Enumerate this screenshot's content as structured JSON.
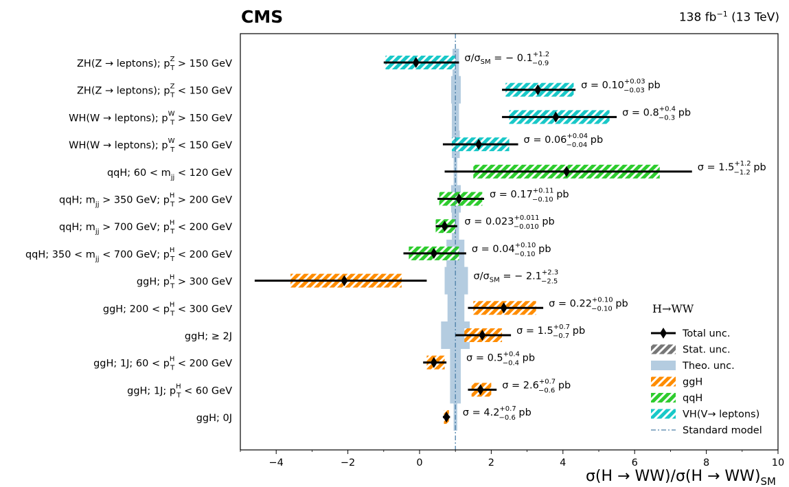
{
  "header": {
    "experiment": "CMS",
    "lumi_value": "138 fb",
    "lumi_exp": "−1",
    "lumi_energy": " (13 TeV)"
  },
  "chart_data": {
    "type": "scatter",
    "xlabel": "σ(H → WW)/σ(H → WW)",
    "xlabel_sub": "SM",
    "xlim": [
      -5,
      10
    ],
    "xticks": [
      -4,
      -2,
      0,
      2,
      4,
      6,
      8,
      10
    ],
    "sm_value": 1.0,
    "colors": {
      "ggH": "#ff8c00",
      "qqH": "#2ecc2e",
      "VH": "#19c8c8",
      "theo": "#b4cce0",
      "total": "#000000",
      "sm_line": "#4a7fa8"
    },
    "categories": [
      {
        "pre": "ZH(Z → leptons);  p",
        "sup": "Z",
        "sub": "T",
        "post": " > 150 GeV",
        "process": "VH",
        "central": -0.1,
        "tot": [
          -1.0,
          1.1
        ],
        "stat": [
          -0.95,
          1.0
        ],
        "theo": [
          0.92,
          1.1
        ],
        "res_pre": "σ/σ",
        "res_sub": "SM",
        "res_mid": " = − 0.1",
        "res_up": "+1.2",
        "res_dn": "−0.9",
        "res_post": ""
      },
      {
        "pre": "ZH(Z → leptons);  p",
        "sup": "Z",
        "sub": "T",
        "post": " < 150 GeV",
        "process": "VH",
        "central": 3.3,
        "tot": [
          2.3,
          4.35
        ],
        "stat": [
          2.4,
          4.3
        ],
        "theo": [
          0.88,
          1.15
        ],
        "res_pre": "σ = 0.10",
        "res_sub": "",
        "res_mid": "",
        "res_up": "+0.03",
        "res_dn": "−0.03",
        "res_post": " pb"
      },
      {
        "pre": "WH(W → leptons);  p",
        "sup": "W",
        "sub": "T",
        "post": " > 150 GeV",
        "process": "VH",
        "central": 3.8,
        "tot": [
          2.3,
          5.5
        ],
        "stat": [
          2.5,
          5.3
        ],
        "theo": [
          0.9,
          1.1
        ],
        "res_pre": "σ = 0.8",
        "res_sub": "",
        "res_mid": "",
        "res_up": "+0.4",
        "res_dn": "−0.3",
        "res_post": " pb"
      },
      {
        "pre": "WH(W → leptons);  p",
        "sup": "W",
        "sub": "T",
        "post": " < 150 GeV",
        "process": "VH",
        "central": 1.65,
        "tot": [
          0.65,
          2.75
        ],
        "stat": [
          0.9,
          2.5
        ],
        "theo": [
          0.9,
          1.12
        ],
        "res_pre": "σ = 0.06",
        "res_sub": "",
        "res_mid": "",
        "res_up": "+0.04",
        "res_dn": "−0.04",
        "res_post": " pb"
      },
      {
        "pre": "qqH;  60 < m",
        "sup": "",
        "sub": "jj",
        "post": " < 120 GeV",
        "process": "qqH",
        "central": 4.1,
        "tot": [
          0.7,
          7.6
        ],
        "stat": [
          1.5,
          6.7
        ],
        "theo": [
          0.95,
          1.05
        ],
        "res_pre": "σ = 1.5",
        "res_sub": "",
        "res_mid": "",
        "res_up": "+1.2",
        "res_dn": "−1.2",
        "res_post": " pb"
      },
      {
        "pre": "qqH;  m",
        "sup": "",
        "sub": "jj",
        "post": " > 350 GeV;  p",
        "sup2": "H",
        "sub2": "T",
        "post2": " > 200 GeV",
        "process": "qqH",
        "central": 1.1,
        "tot": [
          0.5,
          1.8
        ],
        "stat": [
          0.55,
          1.75
        ],
        "theo": [
          0.88,
          1.15
        ],
        "res_pre": "σ = 0.17",
        "res_sub": "",
        "res_mid": "",
        "res_up": "+0.11",
        "res_dn": "−0.10",
        "res_post": " pb"
      },
      {
        "pre": "qqH;  m",
        "sup": "",
        "sub": "jj",
        "post": " > 700 GeV;  p",
        "sup2": "H",
        "sub2": "T",
        "post2": " < 200 GeV",
        "process": "qqH",
        "central": 0.7,
        "tot": [
          0.45,
          1.05
        ],
        "stat": [
          0.45,
          1.0
        ],
        "theo": [
          0.9,
          1.1
        ],
        "res_pre": "σ = 0.023",
        "res_sub": "",
        "res_mid": "",
        "res_up": "+0.011",
        "res_dn": "−0.010",
        "res_post": " pb"
      },
      {
        "pre": "qqH;  350 < m",
        "sup": "",
        "sub": "jj",
        "post": " < 700 GeV;  p",
        "sup2": "H",
        "sub2": "T",
        "post2": " < 200 GeV",
        "process": "qqH",
        "central": 0.4,
        "tot": [
          -0.45,
          1.3
        ],
        "stat": [
          -0.3,
          1.1
        ],
        "theo": [
          0.75,
          1.25
        ],
        "res_pre": "σ = 0.04",
        "res_sub": "",
        "res_mid": "",
        "res_up": "+0.10",
        "res_dn": "−0.10",
        "res_post": " pb"
      },
      {
        "pre": "ggH;  p",
        "sup": "H",
        "sub": "T",
        "post": " > 300 GeV",
        "process": "ggH",
        "central": -2.1,
        "tot": [
          -4.6,
          0.2
        ],
        "stat": [
          -3.6,
          -0.5
        ],
        "theo": [
          0.7,
          1.35
        ],
        "res_pre": "σ/σ",
        "res_sub": "SM",
        "res_mid": " = − 2.1",
        "res_up": "+2.3",
        "res_dn": "−2.5",
        "res_post": ""
      },
      {
        "pre": "ggH;  200 < p",
        "sup": "H",
        "sub": "T",
        "post": " < 300 GeV",
        "process": "ggH",
        "central": 2.35,
        "tot": [
          1.35,
          3.45
        ],
        "stat": [
          1.5,
          3.25
        ],
        "theo": [
          0.78,
          1.25
        ],
        "res_pre": "σ = 0.22",
        "res_sub": "",
        "res_mid": "",
        "res_up": "+0.10",
        "res_dn": "−0.10",
        "res_post": " pb"
      },
      {
        "pre": "ggH;   ≥ 2J",
        "sup": "",
        "sub": "",
        "post": "",
        "process": "ggH",
        "central": 1.75,
        "tot": [
          1.0,
          2.55
        ],
        "stat": [
          1.25,
          2.3
        ],
        "theo": [
          0.6,
          1.4
        ],
        "res_pre": "σ = 1.5",
        "res_sub": "",
        "res_mid": "",
        "res_up": "+0.7",
        "res_dn": "−0.7",
        "res_post": " pb"
      },
      {
        "pre": "ggH;  1J;  60 < p",
        "sup": "H",
        "sub": "T",
        "post": " < 200 GeV",
        "process": "ggH",
        "central": 0.4,
        "tot": [
          0.1,
          0.75
        ],
        "stat": [
          0.2,
          0.7
        ],
        "theo": [
          0.85,
          1.15
        ],
        "res_pre": "σ = 0.5",
        "res_sub": "",
        "res_mid": "",
        "res_up": "+0.4",
        "res_dn": "−0.4",
        "res_post": " pb"
      },
      {
        "pre": "ggH;  1J;  p",
        "sup": "H",
        "sub": "T",
        "post": " < 60 GeV",
        "process": "ggH",
        "central": 1.7,
        "tot": [
          1.35,
          2.15
        ],
        "stat": [
          1.45,
          2.0
        ],
        "theo": [
          0.85,
          1.15
        ],
        "res_pre": "σ = 2.6",
        "res_sub": "",
        "res_mid": "",
        "res_up": "+0.7",
        "res_dn": "−0.6",
        "res_post": " pb"
      },
      {
        "pre": "ggH;  0J",
        "sup": "",
        "sub": "",
        "post": "",
        "process": "ggH",
        "central": 0.75,
        "tot": [
          0.65,
          0.85
        ],
        "stat": [
          0.68,
          0.82
        ],
        "theo": [
          0.95,
          1.05
        ],
        "res_pre": "σ = 4.2",
        "res_sub": "",
        "res_mid": "",
        "res_up": "+0.7",
        "res_dn": "−0.6",
        "res_post": " pb"
      }
    ],
    "legend": {
      "title": "H→WW",
      "placement": "bottom-right",
      "entries": [
        {
          "label": "Total unc.",
          "kind": "total"
        },
        {
          "label": "Stat. unc.",
          "kind": "stat"
        },
        {
          "label": "Theo. unc.",
          "kind": "theo"
        },
        {
          "label": "ggH",
          "kind": "ggH"
        },
        {
          "label": "qqH",
          "kind": "qqH"
        },
        {
          "label": "VH(V→ leptons)",
          "kind": "VH"
        },
        {
          "label": "Standard model",
          "kind": "sm"
        }
      ]
    }
  }
}
